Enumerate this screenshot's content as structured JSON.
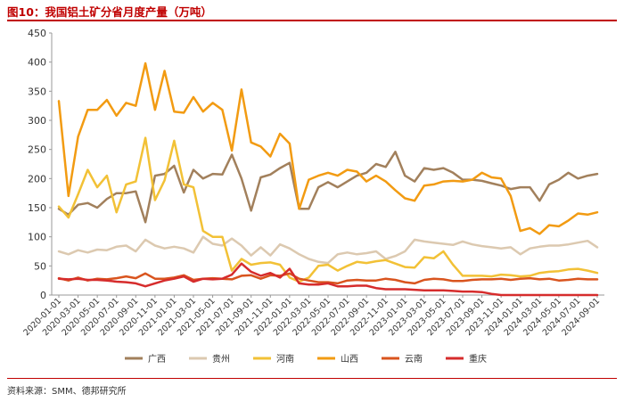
{
  "title": "图10：我国铝土矿分省月度产量（万吨）",
  "source": "资料来源：SMM、德邦研究所",
  "colors": {
    "title": "#c00000",
    "广西": "#a2805c",
    "贵州": "#dcc9b0",
    "河南": "#f2c136",
    "山西": "#f29b12",
    "云南": "#d9541e",
    "重庆": "#d62c2c"
  },
  "chart_data": {
    "type": "line",
    "title": "我国铝土矿分省月度产量（万吨）",
    "xlabel": "",
    "ylabel": "",
    "ylim": [
      0,
      450
    ],
    "yticks": [
      "0",
      "50",
      "100",
      "150",
      "200",
      "250",
      "300",
      "350",
      "400",
      "450"
    ],
    "xtick_labels": [
      "2020-01-01",
      "2020-03-01",
      "2020-05-01",
      "2020-07-01",
      "2020-09-01",
      "2020-11-01",
      "2021-01-01",
      "2021-03-01",
      "2021-05-01",
      "2021-07-01",
      "2021-09-01",
      "2021-11-01",
      "2022-01-01",
      "2022-03-01",
      "2022-05-01",
      "2022-07-01",
      "2022-09-01",
      "2022-11-01",
      "2023-01-01",
      "2023-03-01",
      "2023-05-01",
      "2023-07-01",
      "2023-09-01",
      "2023-11-01",
      "2024-01-01",
      "2024-03-01",
      "2024-05-01",
      "2024-07-01",
      "2024-09-01"
    ],
    "n_points": 57,
    "legend_position": "bottom",
    "series": [
      {
        "name": "广西",
        "values": [
          148,
          138,
          155,
          158,
          150,
          165,
          175,
          175,
          178,
          125,
          205,
          208,
          222,
          176,
          215,
          200,
          208,
          207,
          241,
          200,
          145,
          202,
          207,
          218,
          227,
          148,
          148,
          185,
          194,
          185,
          195,
          205,
          210,
          225,
          220,
          246,
          205,
          195,
          218,
          215,
          218,
          210,
          198,
          198,
          196,
          192,
          188,
          182,
          185,
          185,
          162,
          190,
          198,
          210,
          200,
          205,
          208
        ]
      },
      {
        "name": "贵州",
        "values": [
          75,
          70,
          77,
          73,
          78,
          77,
          83,
          85,
          75,
          95,
          85,
          80,
          83,
          80,
          73,
          100,
          88,
          85,
          97,
          85,
          68,
          82,
          68,
          87,
          80,
          70,
          62,
          57,
          55,
          70,
          73,
          70,
          72,
          75,
          62,
          67,
          75,
          95,
          92,
          90,
          88,
          86,
          92,
          87,
          84,
          82,
          80,
          82,
          70,
          80,
          83,
          85,
          85,
          87,
          90,
          93,
          82
        ]
      },
      {
        "name": "河南",
        "values": [
          152,
          133,
          173,
          215,
          185,
          205,
          142,
          190,
          195,
          270,
          163,
          197,
          265,
          190,
          185,
          110,
          100,
          100,
          42,
          62,
          52,
          55,
          56,
          52,
          30,
          23,
          30,
          50,
          52,
          42,
          50,
          57,
          55,
          58,
          60,
          54,
          48,
          47,
          65,
          63,
          75,
          52,
          33,
          33,
          33,
          32,
          35,
          34,
          32,
          33,
          38,
          40,
          41,
          44,
          45,
          42,
          38
        ]
      },
      {
        "name": "山西",
        "values": [
          333,
          170,
          272,
          318,
          318,
          335,
          308,
          330,
          325,
          398,
          318,
          385,
          315,
          313,
          340,
          315,
          330,
          318,
          248,
          353,
          262,
          255,
          238,
          277,
          260,
          148,
          198,
          205,
          210,
          205,
          215,
          212,
          195,
          205,
          195,
          180,
          166,
          162,
          188,
          190,
          195,
          196,
          195,
          198,
          210,
          202,
          200,
          170,
          110,
          115,
          105,
          120,
          118,
          128,
          140,
          138,
          142
        ]
      },
      {
        "name": "云南",
        "values": [
          29,
          25,
          30,
          25,
          28,
          27,
          29,
          32,
          29,
          37,
          28,
          28,
          30,
          34,
          26,
          28,
          29,
          28,
          27,
          33,
          34,
          28,
          34,
          33,
          37,
          28,
          25,
          22,
          22,
          20,
          25,
          26,
          25,
          25,
          28,
          26,
          22,
          20,
          26,
          28,
          27,
          24,
          24,
          26,
          27,
          27,
          28,
          26,
          28,
          29,
          27,
          28,
          25,
          26,
          28,
          27,
          27
        ]
      },
      {
        "name": "重庆",
        "values": [
          28,
          27,
          28,
          26,
          26,
          25,
          23,
          22,
          20,
          15,
          20,
          25,
          28,
          32,
          23,
          28,
          27,
          28,
          35,
          54,
          40,
          33,
          38,
          30,
          45,
          20,
          18,
          18,
          20,
          15,
          15,
          16,
          16,
          12,
          10,
          10,
          10,
          9,
          8,
          8,
          8,
          7,
          6,
          6,
          5,
          2,
          0,
          0,
          0,
          0,
          0,
          0,
          0,
          0,
          0,
          0,
          0
        ]
      }
    ]
  }
}
